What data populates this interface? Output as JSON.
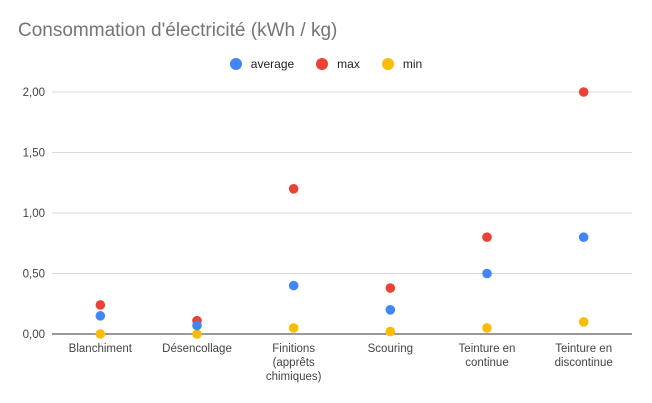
{
  "chart_data": {
    "type": "scatter",
    "title": "Consommation d'électricité (kWh / kg)",
    "categories": [
      [
        "Blanchiment"
      ],
      [
        "Désencollage"
      ],
      [
        "Finitions",
        "(apprêts",
        "chimiques)"
      ],
      [
        "Scouring"
      ],
      [
        "Teinture en",
        "continue"
      ],
      [
        "Teinture en",
        "discontinue"
      ]
    ],
    "series": [
      {
        "name": "average",
        "color": "#4285f4",
        "values": [
          0.15,
          0.07,
          0.4,
          0.2,
          0.5,
          0.8
        ]
      },
      {
        "name": "max",
        "color": "#ea4335",
        "values": [
          0.24,
          0.11,
          1.2,
          0.38,
          0.8,
          2.0
        ]
      },
      {
        "name": "min",
        "color": "#fbbc04",
        "values": [
          0.0,
          0.0,
          0.05,
          0.02,
          0.05,
          0.1
        ]
      }
    ],
    "ylim": [
      0,
      2
    ],
    "yticks": [
      "0,00",
      "0,50",
      "1,00",
      "1,50",
      "2,00"
    ],
    "grid": true,
    "legend": "top-center"
  }
}
